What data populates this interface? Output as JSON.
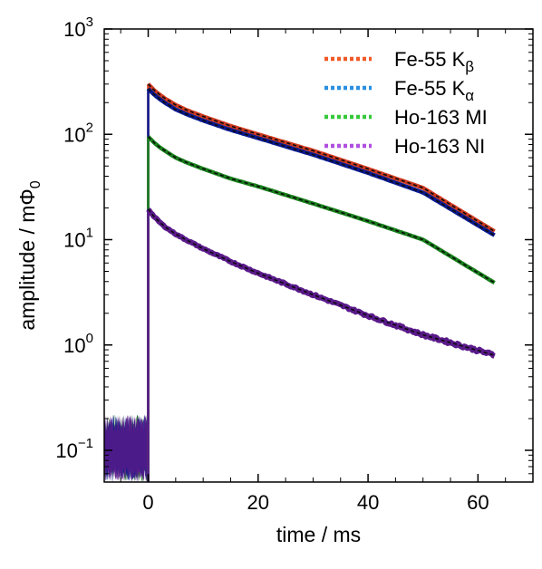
{
  "chart_data": {
    "type": "line",
    "xlabel": "time / ms",
    "ylabel_main": "amplitude  /  m",
    "ylabel_symbol": "Φ",
    "ylabel_sub": "0",
    "xlim": [
      -8,
      70
    ],
    "ylim": [
      0.05,
      1000
    ],
    "yscale": "log",
    "x_ticks": [
      {
        "value": 0,
        "label": "0"
      },
      {
        "value": 20,
        "label": "20"
      },
      {
        "value": 40,
        "label": "40"
      },
      {
        "value": 60,
        "label": "60"
      }
    ],
    "y_ticks": [
      {
        "value": 0.1,
        "base": "10",
        "exp": "−1"
      },
      {
        "value": 1,
        "base": "10",
        "exp": "0"
      },
      {
        "value": 10,
        "base": "10",
        "exp": "1"
      },
      {
        "value": 100,
        "base": "10",
        "exp": "2"
      },
      {
        "value": 1000,
        "base": "10",
        "exp": "3"
      }
    ],
    "legend_position": "top-right",
    "series": [
      {
        "name": "Fe-55 K",
        "sub": "β",
        "fit_color": "#f05a28",
        "data_color": "#d03a20",
        "x": [
          0,
          1,
          2,
          3,
          5,
          7,
          10,
          15,
          20,
          30,
          40,
          50,
          63
        ],
        "y": [
          300,
          265,
          240,
          220,
          190,
          170,
          148,
          120,
          100,
          70,
          47,
          31,
          12
        ]
      },
      {
        "name": "Fe-55 K",
        "sub": "α",
        "fit_color": "#2a8fe0",
        "data_color": "#0a1a90",
        "x": [
          0,
          1,
          2,
          3,
          5,
          7,
          10,
          15,
          20,
          30,
          40,
          50,
          63
        ],
        "y": [
          270,
          240,
          218,
          200,
          172,
          155,
          135,
          110,
          92,
          64,
          43,
          28,
          11
        ]
      },
      {
        "name": "Ho-163 MI",
        "sub": "",
        "fit_color": "#36c83a",
        "data_color": "#18801c",
        "x": [
          0,
          1,
          2,
          3,
          5,
          7,
          10,
          15,
          20,
          30,
          40,
          50,
          63
        ],
        "y": [
          95,
          84,
          76,
          70,
          60,
          54,
          47,
          38,
          32,
          22,
          15,
          10,
          3.9
        ]
      },
      {
        "name": "Ho-163 NI",
        "sub": "",
        "fit_color": "#b050e0",
        "data_color": "#5a1a8a",
        "x": [
          0,
          1,
          2,
          3,
          5,
          7,
          10,
          15,
          20,
          30,
          40,
          50,
          63
        ],
        "y": [
          19.5,
          16.7,
          14.8,
          13.3,
          11.3,
          9.9,
          8.2,
          6.2,
          4.8,
          3.0,
          1.9,
          1.25,
          0.8
        ]
      }
    ],
    "baseline_noise": {
      "x_range": [
        -8,
        0
      ],
      "y_range": [
        0.05,
        0.22
      ]
    }
  }
}
